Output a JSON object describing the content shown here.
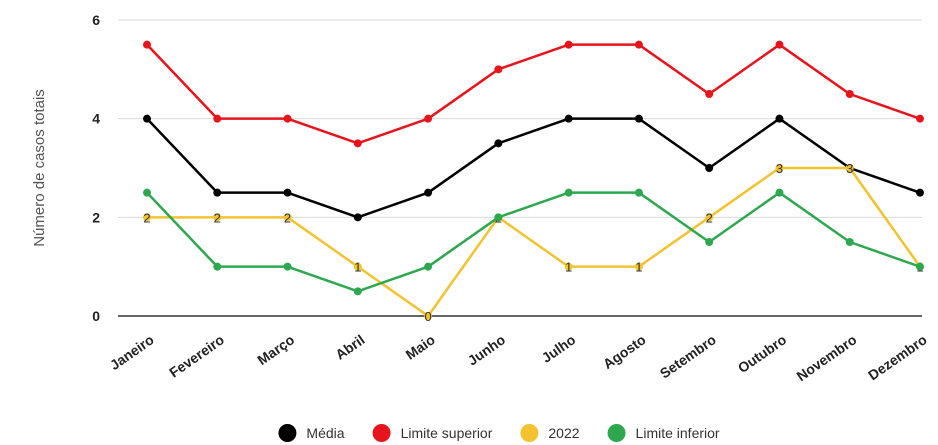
{
  "chart_data": {
    "type": "line",
    "ylabel": "Número de casos totais",
    "ylim": [
      0,
      6
    ],
    "yticks": [
      0,
      2,
      4,
      6
    ],
    "grid": true,
    "legend_position": "bottom",
    "categories": [
      "Janeiro",
      "Fevereiro",
      "Março",
      "Abril",
      "Maio",
      "Junho",
      "Julho",
      "Agosto",
      "Setembro",
      "Outubro",
      "Novembro",
      "Dezembro"
    ],
    "series": [
      {
        "name": "Média",
        "color": "#000000",
        "values": [
          4,
          2.5,
          2.5,
          2,
          2.5,
          3.5,
          4,
          4,
          3,
          4,
          3,
          2.5
        ],
        "show_labels": false
      },
      {
        "name": "Limite superior",
        "color": "#e8141c",
        "values": [
          5.5,
          4,
          4,
          3.5,
          4,
          5,
          5.5,
          5.5,
          4.5,
          5.5,
          4.5,
          4
        ],
        "show_labels": false
      },
      {
        "name": "2022",
        "color": "#f2c230",
        "values": [
          2,
          2,
          2,
          1,
          0,
          2,
          1,
          1,
          2,
          3,
          3,
          1
        ],
        "show_labels": true
      },
      {
        "name": "Limite inferior",
        "color": "#2ea84f",
        "values": [
          2.5,
          1,
          1,
          0.5,
          1,
          2,
          2.5,
          2.5,
          1.5,
          2.5,
          1.5,
          1
        ],
        "show_labels": false
      }
    ]
  }
}
